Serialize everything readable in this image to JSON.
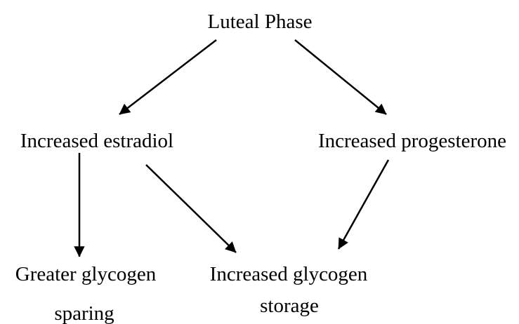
{
  "nodes": [
    {
      "label": "Luteal Phase"
    },
    {
      "label": "Increased estradiol"
    },
    {
      "label": "Increased progesterone"
    },
    {
      "lines": [
        "Greater glycogen",
        "sparing"
      ]
    },
    {
      "lines": [
        "Increased glycogen",
        "storage"
      ]
    }
  ]
}
